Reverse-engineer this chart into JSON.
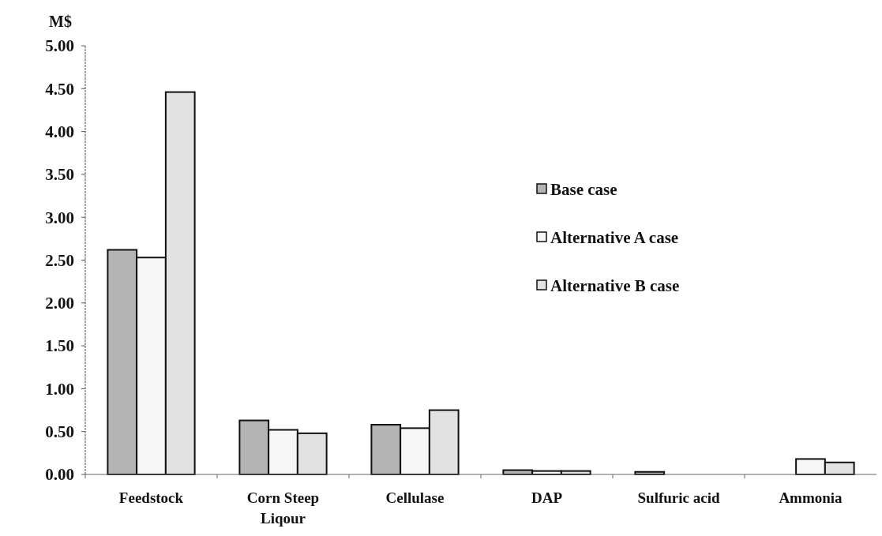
{
  "chart_data": {
    "type": "bar",
    "ylabel": "M$",
    "categories": [
      "Feedstock",
      "Corn Steep Liqour",
      "Cellulase",
      "DAP",
      "Sulfuric acid",
      "Ammonia"
    ],
    "series": [
      {
        "name": "Base case",
        "color": "#b4b4b4",
        "values": [
          2.62,
          0.63,
          0.58,
          0.05,
          0.03,
          0
        ]
      },
      {
        "name": "Alternative A case",
        "color": "#f6f6f6",
        "values": [
          2.53,
          0.52,
          0.54,
          0.04,
          0,
          0.18
        ]
      },
      {
        "name": "Alternative B case",
        "color": "#e2e2e2",
        "values": [
          4.46,
          0.48,
          0.75,
          0.04,
          0,
          0.14
        ]
      }
    ],
    "ylim": [
      0,
      5
    ],
    "yticks": [
      {
        "value": 0,
        "label": "0.00"
      },
      {
        "value": 0.5,
        "label": "0.50"
      },
      {
        "value": 1,
        "label": "1.00"
      },
      {
        "value": 1.5,
        "label": "1.50"
      },
      {
        "value": 2,
        "label": "2.00"
      },
      {
        "value": 2.5,
        "label": "2.50"
      },
      {
        "value": 3,
        "label": "3.00"
      },
      {
        "value": 3.5,
        "label": "3.50"
      },
      {
        "value": 4,
        "label": "4.00"
      },
      {
        "value": 4.5,
        "label": "4.50"
      },
      {
        "value": 5,
        "label": "5.00"
      }
    ],
    "legend": "right",
    "grid": false
  }
}
